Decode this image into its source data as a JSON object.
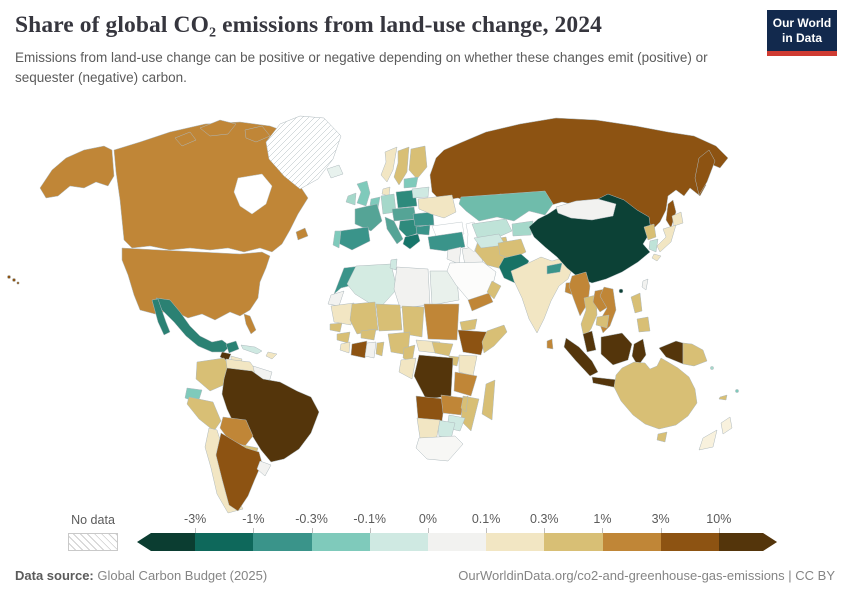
{
  "header": {
    "title": "Share of global CO₂ emissions from land-use change, 2024",
    "subtitle": "Emissions from land-use change can be positive or negative depending on whether these changes emit (positive) or sequester (negative) carbon."
  },
  "logo": {
    "line1": "Our World",
    "line2": "in Data",
    "bg_color": "#12294d",
    "stripe_color": "#cf3b32"
  },
  "legend": {
    "no_data_label": "No data",
    "ticks": [
      "-3%",
      "-1%",
      "-0.3%",
      "-0.1%",
      "0%",
      "0.1%",
      "0.3%",
      "1%",
      "3%",
      "10%"
    ],
    "colors": [
      "#0b3d31",
      "#0e685b",
      "#3a948a",
      "#7fcabb",
      "#cfe9e2",
      "#f2f2f0",
      "#f2e6c3",
      "#d8bf75",
      "#c08637",
      "#8d5312",
      "#54350b"
    ]
  },
  "footer": {
    "source_label": "Data source:",
    "source_value": " Global Carbon Budget (2025)",
    "link_text": "OurWorldinData.org/co2-and-greenhouse-gas-emissions | CC BY"
  },
  "map": {
    "type": "choropleth",
    "no_data_style": "hatch",
    "country_colors": {
      "alaska": "#c08637",
      "canada": "#c08637",
      "usa": "#c08637",
      "hawaii": "#8d5312",
      "greenland": "hatch",
      "mexico": "#2b8173",
      "guatemala": "#54350b",
      "honduras-nicaragua": "#f2e6c3",
      "costa-rica-panama": "#cfe9e2",
      "cuba": "#cfe9e2",
      "hispaniola": "#f2e6c3",
      "colombia": "#d8bf75",
      "venezuela": "#f2e6c3",
      "guyanas": "#f2f2f0",
      "ecuador": "#7fcabb",
      "peru": "#d8bf75",
      "brazil": "#54350b",
      "bolivia": "#c08637",
      "paraguay": "#d8bf75",
      "chile": "#f2e6c3",
      "argentina": "#8d5312",
      "uruguay": "#f2f2f0",
      "iceland": "#e8f2ee",
      "uk": "#7fcabb",
      "ireland": "#a5d8ca",
      "norway": "#f2e6c3",
      "sweden": "#d8bf75",
      "finland": "#d8bf75",
      "denmark": "#f2e6c3",
      "benelux": "#7fcabb",
      "germany": "#a5d8ca",
      "poland": "#2e8a7c",
      "france": "#55a496",
      "spain": "#3a948a",
      "portugal": "#7fcabb",
      "italy": "#55a496",
      "central-europe": "#55a496",
      "balkans": "#2e8a7c",
      "romania": "#3a948a",
      "bulgaria": "#3a948a",
      "greece": "#17756a",
      "ukraine": "#f2e6c3",
      "belarus": "#cfe9e2",
      "baltics": "#7fcabb",
      "russia": "#8d5312",
      "turkey": "#3a948a",
      "levant": "#f2f2f0",
      "iraq": "#f2f2f0",
      "saudi-arabia": "#fcfcfb",
      "yemen": "#c08637",
      "oman": "#d8bf75",
      "iran": "#d8bf75",
      "kazakhstan": "#6fbcab",
      "uzbekistan": "#bfe3d8",
      "turkmenistan": "#cfe9e2",
      "kyrgyz-tajik": "#a5d8ca",
      "afghanistan": "#d8bf75",
      "pakistan": "#187265",
      "india": "#f2e6c3",
      "nepal": "#3a948a",
      "bangladesh": "#c08637",
      "sri-lanka": "#c08637",
      "myanmar": "#c08637",
      "thailand": "#d8bf75",
      "laos": "#c08637",
      "vietnam": "#c08637",
      "cambodia": "#d8bf75",
      "malaysia": "#54350b",
      "indonesia": "#54350b",
      "philippines": "#d8bf75",
      "taiwan": "#f2f2f0",
      "china": "#0c4136",
      "mongolia": "#f2f2f0",
      "north-korea": "#d8bf75",
      "south-korea": "#bfe3d8",
      "japan": "#f2e6c3",
      "papua-new-guinea": "#d8bf75",
      "australia": "#d8bf75",
      "new-zealand": "#f8f1dd",
      "solomon-islands": "#a5d8ca",
      "fiji": "#7fcabb",
      "new-caledonia": "#d8bf75",
      "morocco": "#3a948a",
      "western-sahara": "#f2f2f0",
      "algeria": "#d4ebe2",
      "tunisia": "#cfe9e2",
      "libya": "#f2f2f0",
      "egypt": "#e9f1ec",
      "mauritania": "#f2e6c3",
      "mali": "#d8bf75",
      "niger": "#d8bf75",
      "chad": "#d8bf75",
      "sudan": "#c08637",
      "senegal": "#d8bf75",
      "guinea": "#d8bf75",
      "sierra-leone-liberia": "#f2e6c3",
      "cote-divoire": "#8d5312",
      "ghana": "#f2f2f0",
      "burkina-faso": "#d8bf75",
      "benin-togo": "#d8bf75",
      "nigeria": "#d8bf75",
      "cameroon": "#d8bf75",
      "central-african-republic": "#f2e6c3",
      "south-sudan": "#d8bf75",
      "eritrea": "#d8bf75",
      "ethiopia": "#8d5312",
      "somalia": "#d8bf75",
      "kenya": "#f2e6c3",
      "uganda": "#d8bf75",
      "drc": "#54350b",
      "gabon-congo": "#f2e6c3",
      "tanzania": "#c08637",
      "angola": "#8d5312",
      "zambia": "#c08637",
      "malawi": "#d8bf75",
      "mozambique": "#d8bf75",
      "zimbabwe": "#cfe9e2",
      "botswana": "#cfe9e2",
      "namibia": "#f2e6c3",
      "south-africa": "#f7f7f5",
      "madagascar": "#d8bf75"
    }
  }
}
